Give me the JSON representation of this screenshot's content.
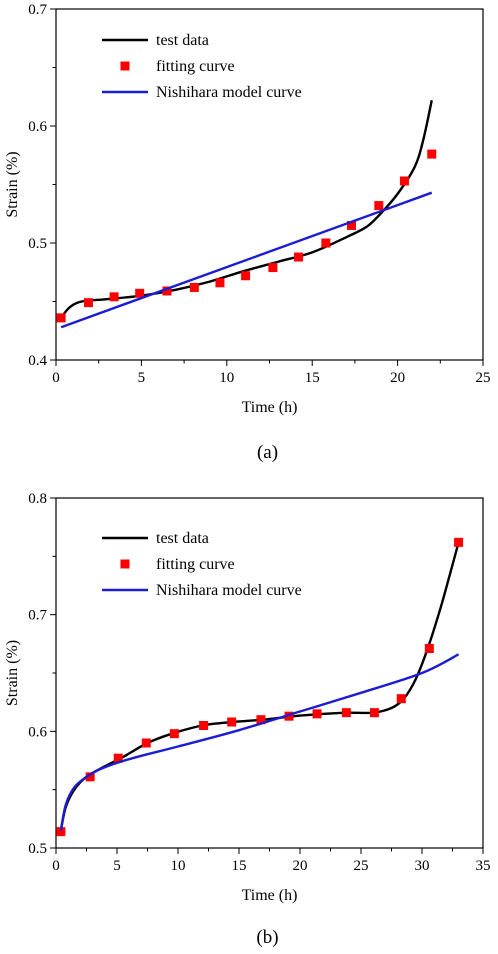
{
  "chart_data": [
    {
      "type": "line",
      "panel_label": "(a)",
      "xlabel": "Time (h)",
      "ylabel": "Strain (%)",
      "xlim": [
        0,
        25
      ],
      "ylim": [
        0.4,
        0.7
      ],
      "xticks": [
        0,
        5,
        10,
        15,
        20,
        25
      ],
      "yticks": [
        0.4,
        0.5,
        0.6,
        0.7
      ],
      "xtick_labels": [
        "0",
        "5",
        "10",
        "15",
        "20",
        "25"
      ],
      "ytick_labels": [
        "0.4",
        "0.5",
        "0.6",
        "0.7"
      ],
      "legend_position": "top-left",
      "series": [
        {
          "name": "test data",
          "style": "line",
          "color": "#000000",
          "x": [
            0.3,
            0.8,
            1.5,
            3,
            5,
            7,
            9,
            11,
            13,
            15,
            17,
            18.2,
            19,
            20,
            21,
            21.5,
            22
          ],
          "y": [
            0.436,
            0.445,
            0.45,
            0.452,
            0.455,
            0.46,
            0.467,
            0.476,
            0.484,
            0.492,
            0.505,
            0.514,
            0.525,
            0.542,
            0.565,
            0.588,
            0.622
          ]
        },
        {
          "name": "fitting curve",
          "style": "markers",
          "color": "#ff0000",
          "x": [
            0.3,
            1.9,
            3.4,
            4.9,
            6.5,
            8.1,
            9.6,
            11.1,
            12.7,
            14.2,
            15.8,
            17.3,
            18.9,
            20.4,
            22
          ],
          "y": [
            0.436,
            0.449,
            0.454,
            0.457,
            0.459,
            0.462,
            0.466,
            0.472,
            0.479,
            0.488,
            0.5,
            0.515,
            0.532,
            0.553,
            0.576
          ]
        },
        {
          "name": "Nishihara model curve",
          "style": "line",
          "color": "#1c1cd2",
          "x": [
            0.3,
            22
          ],
          "y": [
            0.428,
            0.543
          ]
        }
      ]
    },
    {
      "type": "line",
      "panel_label": "(b)",
      "xlabel": "Time (h)",
      "ylabel": "Strain (%)",
      "xlim": [
        0,
        35
      ],
      "ylim": [
        0.5,
        0.8
      ],
      "xticks": [
        0,
        5,
        10,
        15,
        20,
        25,
        30,
        35
      ],
      "yticks": [
        0.5,
        0.6,
        0.7,
        0.8
      ],
      "xtick_labels": [
        "0",
        "5",
        "10",
        "15",
        "20",
        "25",
        "30",
        "35"
      ],
      "ytick_labels": [
        "0.5",
        "0.6",
        "0.7",
        "0.8"
      ],
      "legend_position": "top-left",
      "series": [
        {
          "name": "test data",
          "style": "line",
          "color": "#000000",
          "x": [
            0.4,
            0.8,
            1.5,
            2.5,
            4,
            5.5,
            7.5,
            9.5,
            12,
            14.5,
            17,
            19.5,
            22,
            24,
            26,
            27.5,
            28.5,
            29.5,
            30.5,
            31.5,
            32.3,
            33
          ],
          "y": [
            0.515,
            0.535,
            0.55,
            0.561,
            0.57,
            0.578,
            0.59,
            0.598,
            0.605,
            0.608,
            0.61,
            0.613,
            0.615,
            0.616,
            0.616,
            0.62,
            0.628,
            0.645,
            0.672,
            0.705,
            0.735,
            0.762
          ]
        },
        {
          "name": "fitting curve",
          "style": "markers",
          "color": "#ff0000",
          "x": [
            0.4,
            2.8,
            5.1,
            7.4,
            9.7,
            12.1,
            14.4,
            16.8,
            19.1,
            21.4,
            23.8,
            26.1,
            28.3,
            30.6,
            33
          ],
          "y": [
            0.514,
            0.561,
            0.577,
            0.59,
            0.598,
            0.605,
            0.608,
            0.61,
            0.613,
            0.615,
            0.616,
            0.616,
            0.628,
            0.671,
            0.762
          ]
        },
        {
          "name": "Nishihara model curve",
          "style": "line",
          "color": "#1c1cd2",
          "x": [
            0.4,
            0.8,
            1.5,
            2.5,
            3.5,
            5,
            7,
            10,
            15,
            20,
            25,
            30,
            33
          ],
          "y": [
            0.515,
            0.537,
            0.552,
            0.561,
            0.567,
            0.573,
            0.579,
            0.587,
            0.601,
            0.617,
            0.633,
            0.65,
            0.666
          ]
        }
      ]
    }
  ]
}
